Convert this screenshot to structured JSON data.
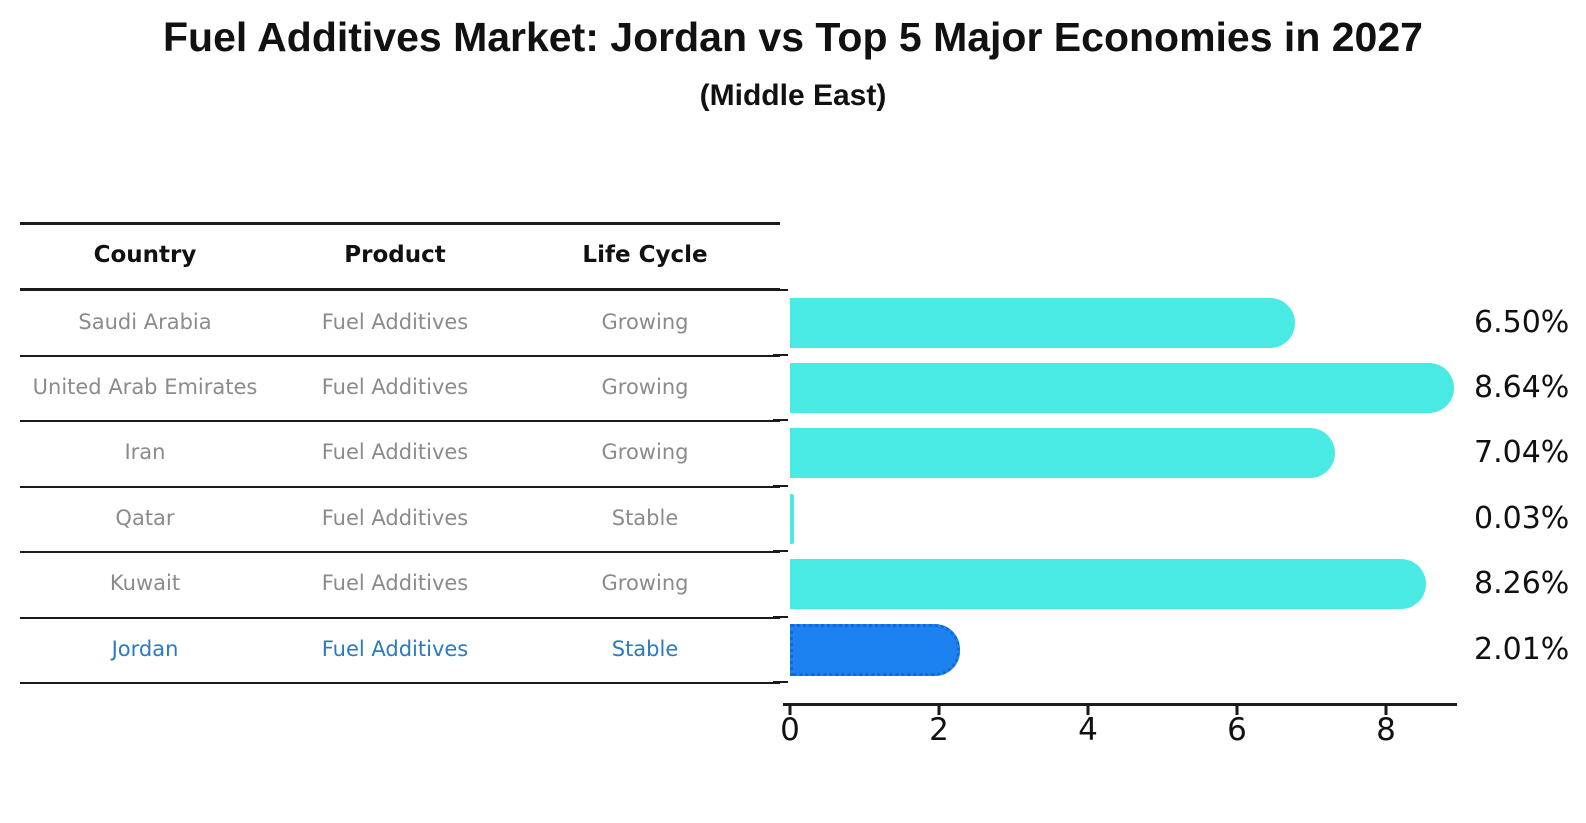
{
  "title": "Fuel Additives Market: Jordan vs Top 5 Major Economies in 2027",
  "subtitle": "(Middle East)",
  "table": {
    "headers": [
      "Country",
      "Product",
      "Life Cycle"
    ],
    "rows": [
      {
        "country": "Saudi Arabia",
        "product": "Fuel Additives",
        "life_cycle": "Growing",
        "highlight": false
      },
      {
        "country": "United Arab Emirates",
        "product": "Fuel Additives",
        "life_cycle": "Growing",
        "highlight": false
      },
      {
        "country": "Iran",
        "product": "Fuel Additives",
        "life_cycle": "Growing",
        "highlight": false
      },
      {
        "country": "Qatar",
        "product": "Fuel Additives",
        "life_cycle": "Stable",
        "highlight": false
      },
      {
        "country": "Kuwait",
        "product": "Fuel Additives",
        "life_cycle": "Growing",
        "highlight": false
      },
      {
        "country": "Jordan",
        "product": "Fuel Additives",
        "life_cycle": "Stable",
        "highlight": true
      }
    ]
  },
  "chart_data": {
    "type": "bar",
    "orientation": "horizontal",
    "title": "Fuel Additives Market: Jordan vs Top 5 Major Economies in 2027",
    "subtitle": "(Middle East)",
    "categories": [
      "Saudi Arabia",
      "United Arab Emirates",
      "Iran",
      "Qatar",
      "Kuwait",
      "Jordan"
    ],
    "values": [
      6.5,
      8.64,
      7.04,
      0.03,
      8.26,
      2.01
    ],
    "value_labels": [
      "6.50%",
      "8.64%",
      "7.04%",
      "0.03%",
      "8.26%",
      "2.01%"
    ],
    "xticks": [
      0,
      2,
      4,
      6,
      8
    ],
    "xlim": [
      0,
      9.07
    ],
    "grid": false,
    "legend": false,
    "highlight_category": "Jordan",
    "bar_color": "#49e9e4",
    "highlight_color": "#1b82f0",
    "highlight_border_color": "#1368da",
    "highlight_text_color": "#2b7ac1",
    "text_color": "#111111",
    "muted_text_color": "#8b8b8b"
  }
}
